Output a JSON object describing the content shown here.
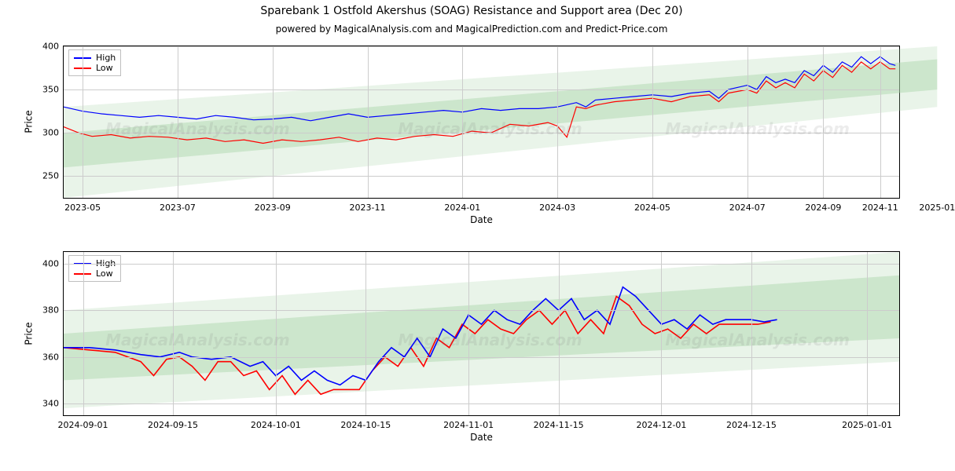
{
  "title": "Sparebank 1 Ostfold Akershus (SOAG) Resistance and Support area (Dec 20)",
  "subtitle": "powered by MagicalAnalysis.com and MagicalPrediction.com and Predict-Price.com",
  "watermark_text": "MagicalAnalysis.com",
  "legend": {
    "high": "High",
    "low": "Low"
  },
  "colors": {
    "high": "#0000ff",
    "low": "#ff0000",
    "border": "#000000",
    "grid": "#cccccc",
    "band_fill": "#a8d5a8",
    "band_opacity_outer": 0.25,
    "band_opacity_inner": 0.45,
    "background": "#ffffff",
    "watermark": "rgba(120,120,120,0.14)"
  },
  "typography": {
    "title_fontsize": 14,
    "subtitle_fontsize": 12,
    "axis_label_fontsize": 12,
    "tick_fontsize": 11,
    "legend_fontsize": 11,
    "watermark_fontsize": 20
  },
  "panel_top": {
    "xlabel": "Date",
    "ylabel": "Price",
    "ylim": [
      225,
      400
    ],
    "yticks": [
      250,
      300,
      350,
      400
    ],
    "xlim": [
      0,
      440
    ],
    "xticks": [
      {
        "pos": 10,
        "label": "2023-05"
      },
      {
        "pos": 60,
        "label": "2023-07"
      },
      {
        "pos": 110,
        "label": "2023-09"
      },
      {
        "pos": 160,
        "label": "2023-11"
      },
      {
        "pos": 210,
        "label": "2024-01"
      },
      {
        "pos": 260,
        "label": "2024-03"
      },
      {
        "pos": 310,
        "label": "2024-05"
      },
      {
        "pos": 360,
        "label": "2024-07"
      },
      {
        "pos": 400,
        "label": "2024-09"
      },
      {
        "pos": 430,
        "label": "2024-11"
      },
      {
        "pos": 460,
        "label": "2025-01"
      }
    ],
    "band": {
      "outer": {
        "y1_start": 225,
        "y1_end": 330,
        "y2_start": 330,
        "y2_end": 400,
        "x_start": 0,
        "x_end": 460
      },
      "inner": {
        "y1_start": 260,
        "y1_end": 350,
        "y2_start": 300,
        "y2_end": 385,
        "x_start": 0,
        "x_end": 460
      }
    },
    "series": {
      "high": [
        [
          0,
          330
        ],
        [
          10,
          325
        ],
        [
          20,
          322
        ],
        [
          30,
          320
        ],
        [
          40,
          318
        ],
        [
          50,
          320
        ],
        [
          60,
          318
        ],
        [
          70,
          316
        ],
        [
          80,
          320
        ],
        [
          90,
          318
        ],
        [
          100,
          315
        ],
        [
          110,
          316
        ],
        [
          120,
          318
        ],
        [
          130,
          314
        ],
        [
          140,
          318
        ],
        [
          150,
          322
        ],
        [
          160,
          318
        ],
        [
          170,
          320
        ],
        [
          180,
          322
        ],
        [
          190,
          324
        ],
        [
          200,
          326
        ],
        [
          210,
          324
        ],
        [
          220,
          328
        ],
        [
          230,
          326
        ],
        [
          240,
          328
        ],
        [
          250,
          328
        ],
        [
          260,
          330
        ],
        [
          270,
          335
        ],
        [
          275,
          330
        ],
        [
          280,
          338
        ],
        [
          290,
          340
        ],
        [
          300,
          342
        ],
        [
          310,
          344
        ],
        [
          320,
          342
        ],
        [
          330,
          346
        ],
        [
          340,
          348
        ],
        [
          345,
          340
        ],
        [
          350,
          350
        ],
        [
          360,
          355
        ],
        [
          365,
          350
        ],
        [
          370,
          365
        ],
        [
          375,
          358
        ],
        [
          380,
          362
        ],
        [
          385,
          358
        ],
        [
          390,
          372
        ],
        [
          395,
          366
        ],
        [
          400,
          378
        ],
        [
          405,
          370
        ],
        [
          410,
          382
        ],
        [
          415,
          376
        ],
        [
          420,
          388
        ],
        [
          425,
          380
        ],
        [
          430,
          388
        ],
        [
          435,
          380
        ],
        [
          438,
          378
        ]
      ],
      "low": [
        [
          0,
          307
        ],
        [
          8,
          300
        ],
        [
          15,
          296
        ],
        [
          25,
          298
        ],
        [
          35,
          294
        ],
        [
          45,
          296
        ],
        [
          55,
          295
        ],
        [
          65,
          292
        ],
        [
          75,
          294
        ],
        [
          85,
          290
        ],
        [
          95,
          292
        ],
        [
          105,
          288
        ],
        [
          115,
          292
        ],
        [
          125,
          290
        ],
        [
          135,
          292
        ],
        [
          145,
          295
        ],
        [
          155,
          290
        ],
        [
          165,
          294
        ],
        [
          175,
          292
        ],
        [
          185,
          296
        ],
        [
          195,
          298
        ],
        [
          205,
          296
        ],
        [
          215,
          302
        ],
        [
          225,
          300
        ],
        [
          235,
          310
        ],
        [
          245,
          308
        ],
        [
          255,
          312
        ],
        [
          260,
          308
        ],
        [
          265,
          295
        ],
        [
          270,
          330
        ],
        [
          275,
          328
        ],
        [
          280,
          332
        ],
        [
          290,
          336
        ],
        [
          300,
          338
        ],
        [
          310,
          340
        ],
        [
          320,
          336
        ],
        [
          330,
          342
        ],
        [
          340,
          344
        ],
        [
          345,
          336
        ],
        [
          350,
          346
        ],
        [
          360,
          350
        ],
        [
          365,
          346
        ],
        [
          370,
          360
        ],
        [
          375,
          352
        ],
        [
          380,
          358
        ],
        [
          385,
          352
        ],
        [
          390,
          368
        ],
        [
          395,
          360
        ],
        [
          400,
          372
        ],
        [
          405,
          364
        ],
        [
          410,
          378
        ],
        [
          415,
          370
        ],
        [
          420,
          382
        ],
        [
          425,
          374
        ],
        [
          430,
          382
        ],
        [
          435,
          374
        ],
        [
          438,
          374
        ]
      ]
    },
    "line_width": 1.2
  },
  "panel_bottom": {
    "xlabel": "Date",
    "ylabel": "Price",
    "ylim": [
      335,
      405
    ],
    "yticks": [
      340,
      360,
      380,
      400
    ],
    "xlim": [
      0,
      130
    ],
    "xticks": [
      {
        "pos": 3,
        "label": "2024-09-01"
      },
      {
        "pos": 17,
        "label": "2024-09-15"
      },
      {
        "pos": 33,
        "label": "2024-10-01"
      },
      {
        "pos": 47,
        "label": "2024-10-15"
      },
      {
        "pos": 63,
        "label": "2024-11-01"
      },
      {
        "pos": 77,
        "label": "2024-11-15"
      },
      {
        "pos": 93,
        "label": "2024-12-01"
      },
      {
        "pos": 107,
        "label": "2024-12-15"
      },
      {
        "pos": 125,
        "label": "2025-01-01"
      }
    ],
    "band": {
      "outer": {
        "y1_start": 338,
        "y1_end": 358,
        "y2_start": 380,
        "y2_end": 405,
        "x_start": 0,
        "x_end": 130
      },
      "inner": {
        "y1_start": 350,
        "y1_end": 368,
        "y2_start": 370,
        "y2_end": 395,
        "x_start": 0,
        "x_end": 130
      }
    },
    "series": {
      "high": [
        [
          0,
          364
        ],
        [
          4,
          364
        ],
        [
          8,
          363
        ],
        [
          12,
          361
        ],
        [
          15,
          360
        ],
        [
          18,
          362
        ],
        [
          20,
          360
        ],
        [
          23,
          359
        ],
        [
          26,
          360
        ],
        [
          29,
          356
        ],
        [
          31,
          358
        ],
        [
          33,
          352
        ],
        [
          35,
          356
        ],
        [
          37,
          350
        ],
        [
          39,
          354
        ],
        [
          41,
          350
        ],
        [
          43,
          348
        ],
        [
          45,
          352
        ],
        [
          47,
          350
        ],
        [
          49,
          358
        ],
        [
          51,
          364
        ],
        [
          53,
          360
        ],
        [
          55,
          368
        ],
        [
          57,
          360
        ],
        [
          59,
          372
        ],
        [
          61,
          368
        ],
        [
          63,
          378
        ],
        [
          65,
          374
        ],
        [
          67,
          380
        ],
        [
          69,
          376
        ],
        [
          71,
          374
        ],
        [
          73,
          380
        ],
        [
          75,
          385
        ],
        [
          77,
          380
        ],
        [
          79,
          385
        ],
        [
          81,
          376
        ],
        [
          83,
          380
        ],
        [
          85,
          374
        ],
        [
          87,
          390
        ],
        [
          89,
          386
        ],
        [
          91,
          380
        ],
        [
          93,
          374
        ],
        [
          95,
          376
        ],
        [
          97,
          372
        ],
        [
          99,
          378
        ],
        [
          101,
          374
        ],
        [
          103,
          376
        ],
        [
          105,
          376
        ],
        [
          107,
          376
        ],
        [
          109,
          375
        ],
        [
          111,
          376
        ]
      ],
      "low": [
        [
          0,
          364
        ],
        [
          4,
          363
        ],
        [
          8,
          362
        ],
        [
          12,
          358
        ],
        [
          14,
          352
        ],
        [
          16,
          359
        ],
        [
          18,
          360
        ],
        [
          20,
          356
        ],
        [
          22,
          350
        ],
        [
          24,
          358
        ],
        [
          26,
          358
        ],
        [
          28,
          352
        ],
        [
          30,
          354
        ],
        [
          32,
          346
        ],
        [
          34,
          352
        ],
        [
          36,
          344
        ],
        [
          38,
          350
        ],
        [
          40,
          344
        ],
        [
          42,
          346
        ],
        [
          44,
          346
        ],
        [
          46,
          346
        ],
        [
          48,
          354
        ],
        [
          50,
          360
        ],
        [
          52,
          356
        ],
        [
          54,
          364
        ],
        [
          56,
          356
        ],
        [
          58,
          368
        ],
        [
          60,
          364
        ],
        [
          62,
          374
        ],
        [
          64,
          370
        ],
        [
          66,
          376
        ],
        [
          68,
          372
        ],
        [
          70,
          370
        ],
        [
          72,
          376
        ],
        [
          74,
          380
        ],
        [
          76,
          374
        ],
        [
          78,
          380
        ],
        [
          80,
          370
        ],
        [
          82,
          376
        ],
        [
          84,
          370
        ],
        [
          86,
          386
        ],
        [
          88,
          382
        ],
        [
          90,
          374
        ],
        [
          92,
          370
        ],
        [
          94,
          372
        ],
        [
          96,
          368
        ],
        [
          98,
          374
        ],
        [
          100,
          370
        ],
        [
          102,
          374
        ],
        [
          104,
          374
        ],
        [
          106,
          374
        ],
        [
          108,
          374
        ],
        [
          110,
          375
        ]
      ]
    },
    "line_width": 1.6
  }
}
